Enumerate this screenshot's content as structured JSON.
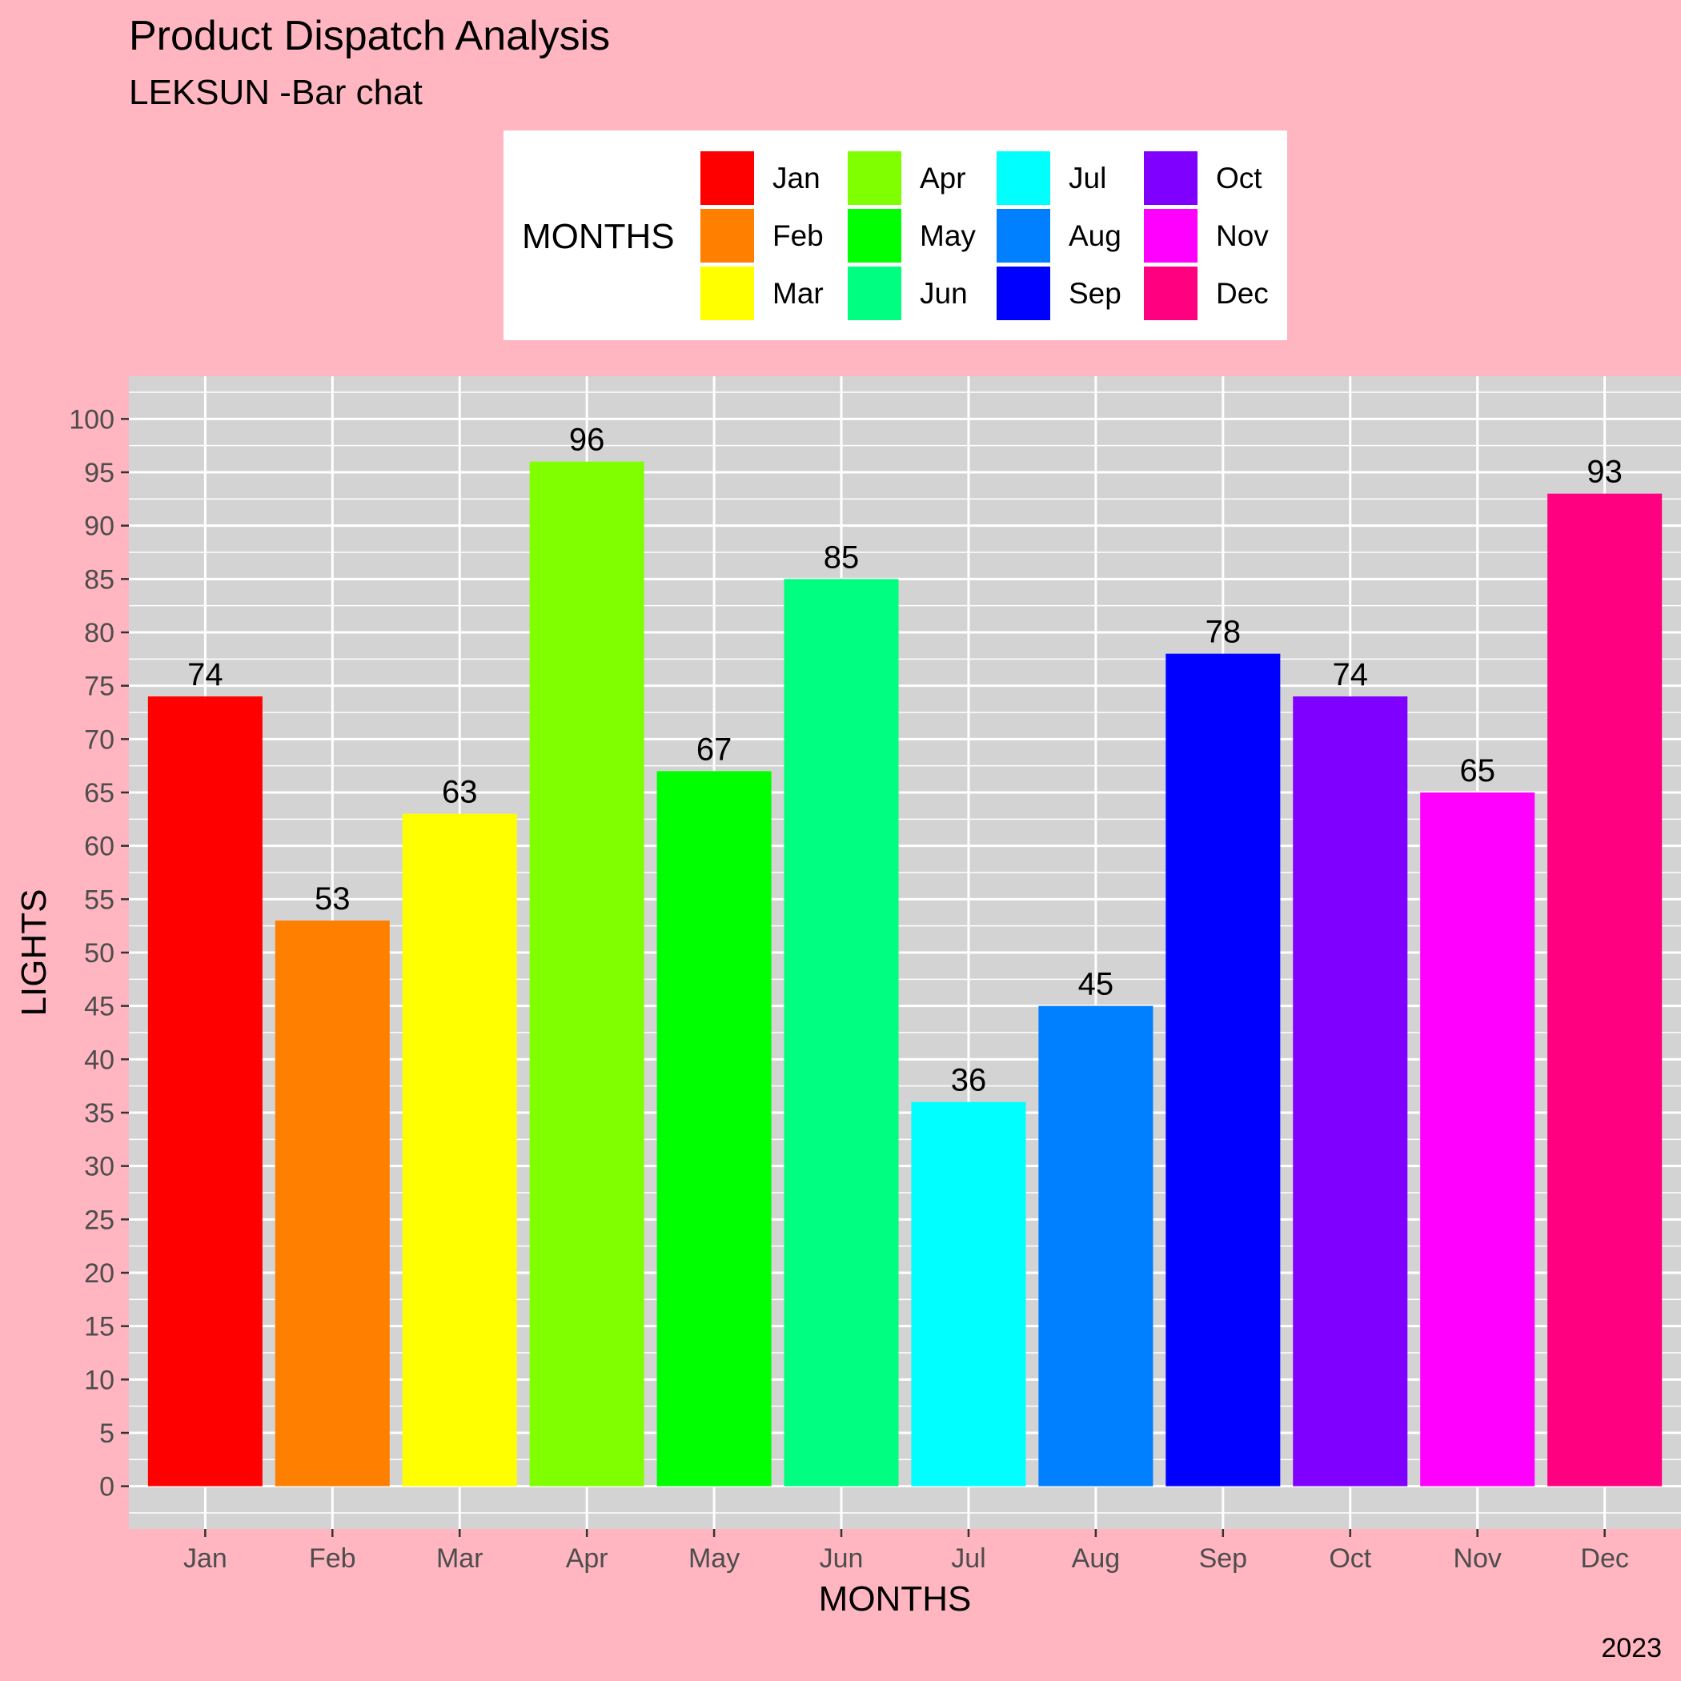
{
  "chart_data": {
    "type": "bar",
    "title": "Product Dispatch Analysis",
    "subtitle": "LEKSUN -Bar chat",
    "caption": "2023",
    "xlabel": "MONTHS",
    "ylabel": "LIGHTS",
    "categories": [
      "Jan",
      "Feb",
      "Mar",
      "Apr",
      "May",
      "Jun",
      "Jul",
      "Aug",
      "Sep",
      "Oct",
      "Nov",
      "Dec"
    ],
    "values": [
      74,
      53,
      63,
      96,
      67,
      85,
      36,
      45,
      78,
      74,
      65,
      93
    ],
    "colors": [
      "#FF0000",
      "#FF8000",
      "#FFFF00",
      "#80FF00",
      "#00FF00",
      "#00FF80",
      "#00FFFF",
      "#0080FF",
      "#0000FF",
      "#8000FF",
      "#FF00FF",
      "#FF0080"
    ],
    "ylim": [
      -4,
      104
    ],
    "yticks": [
      0,
      5,
      10,
      15,
      20,
      25,
      30,
      35,
      40,
      45,
      50,
      55,
      60,
      65,
      70,
      75,
      80,
      85,
      90,
      95,
      100
    ],
    "grid": true,
    "legend": {
      "title": "MONTHS",
      "placement": "top",
      "rows": 3,
      "columns": 4
    },
    "style": {
      "page_background": "#FFB6C1",
      "panel_background": "#D3D3D3",
      "grid_color": "#FFFFFF",
      "legend_background": "#FFFFFF"
    }
  }
}
